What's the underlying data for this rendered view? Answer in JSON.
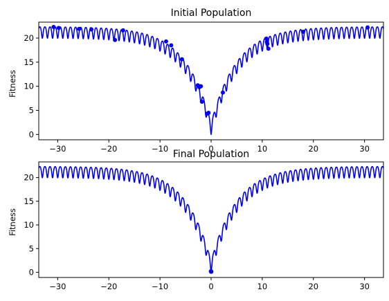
{
  "chart_data": [
    {
      "type": "line",
      "title": "Initial Population",
      "xlabel": "",
      "ylabel": "Fitness",
      "xlim": [
        -33.7,
        33.7
      ],
      "ylim": [
        -1.1,
        23.3
      ],
      "xticks": [
        -30,
        -20,
        -10,
        0,
        10,
        20,
        30
      ],
      "yticks": [
        0,
        5,
        10,
        15,
        20
      ],
      "grid": false,
      "curve": {
        "function": "ackley",
        "x_range": [
          -33.7,
          33.7
        ],
        "color": "#0000ee"
      },
      "points": {
        "color": "#0000ee",
        "x": [
          -30.8,
          -29.8,
          -25.8,
          -23.4,
          -18.8,
          -17.2,
          -8.8,
          -7.8,
          -5.7,
          -2.6,
          -2.3,
          -2.0,
          -1.8,
          -0.8,
          -0.5,
          2.3,
          10.8,
          10.9,
          11.0,
          11.2,
          18.0,
          30.6
        ],
        "y": [
          22.3,
          22.1,
          21.9,
          21.8,
          19.6,
          21.6,
          19.3,
          18.5,
          15.6,
          10.2,
          9.8,
          10.0,
          6.8,
          4.3,
          4.5,
          8.7,
          19.9,
          19.2,
          18.8,
          17.8,
          21.3,
          22.2
        ]
      }
    },
    {
      "type": "line",
      "title": "Final Population",
      "xlabel": "",
      "ylabel": "Fitness",
      "xlim": [
        -33.7,
        33.7
      ],
      "ylim": [
        -1.1,
        23.3
      ],
      "xticks": [
        -30,
        -20,
        -10,
        0,
        10,
        20,
        30
      ],
      "yticks": [
        0,
        5,
        10,
        15,
        20
      ],
      "grid": false,
      "curve": {
        "function": "ackley",
        "x_range": [
          -33.7,
          33.7
        ],
        "color": "#0000ee"
      },
      "points": {
        "color": "#0000ee",
        "x": [
          0.0,
          0.05,
          -0.05
        ],
        "y": [
          0.1,
          0.15,
          0.2
        ]
      }
    }
  ]
}
